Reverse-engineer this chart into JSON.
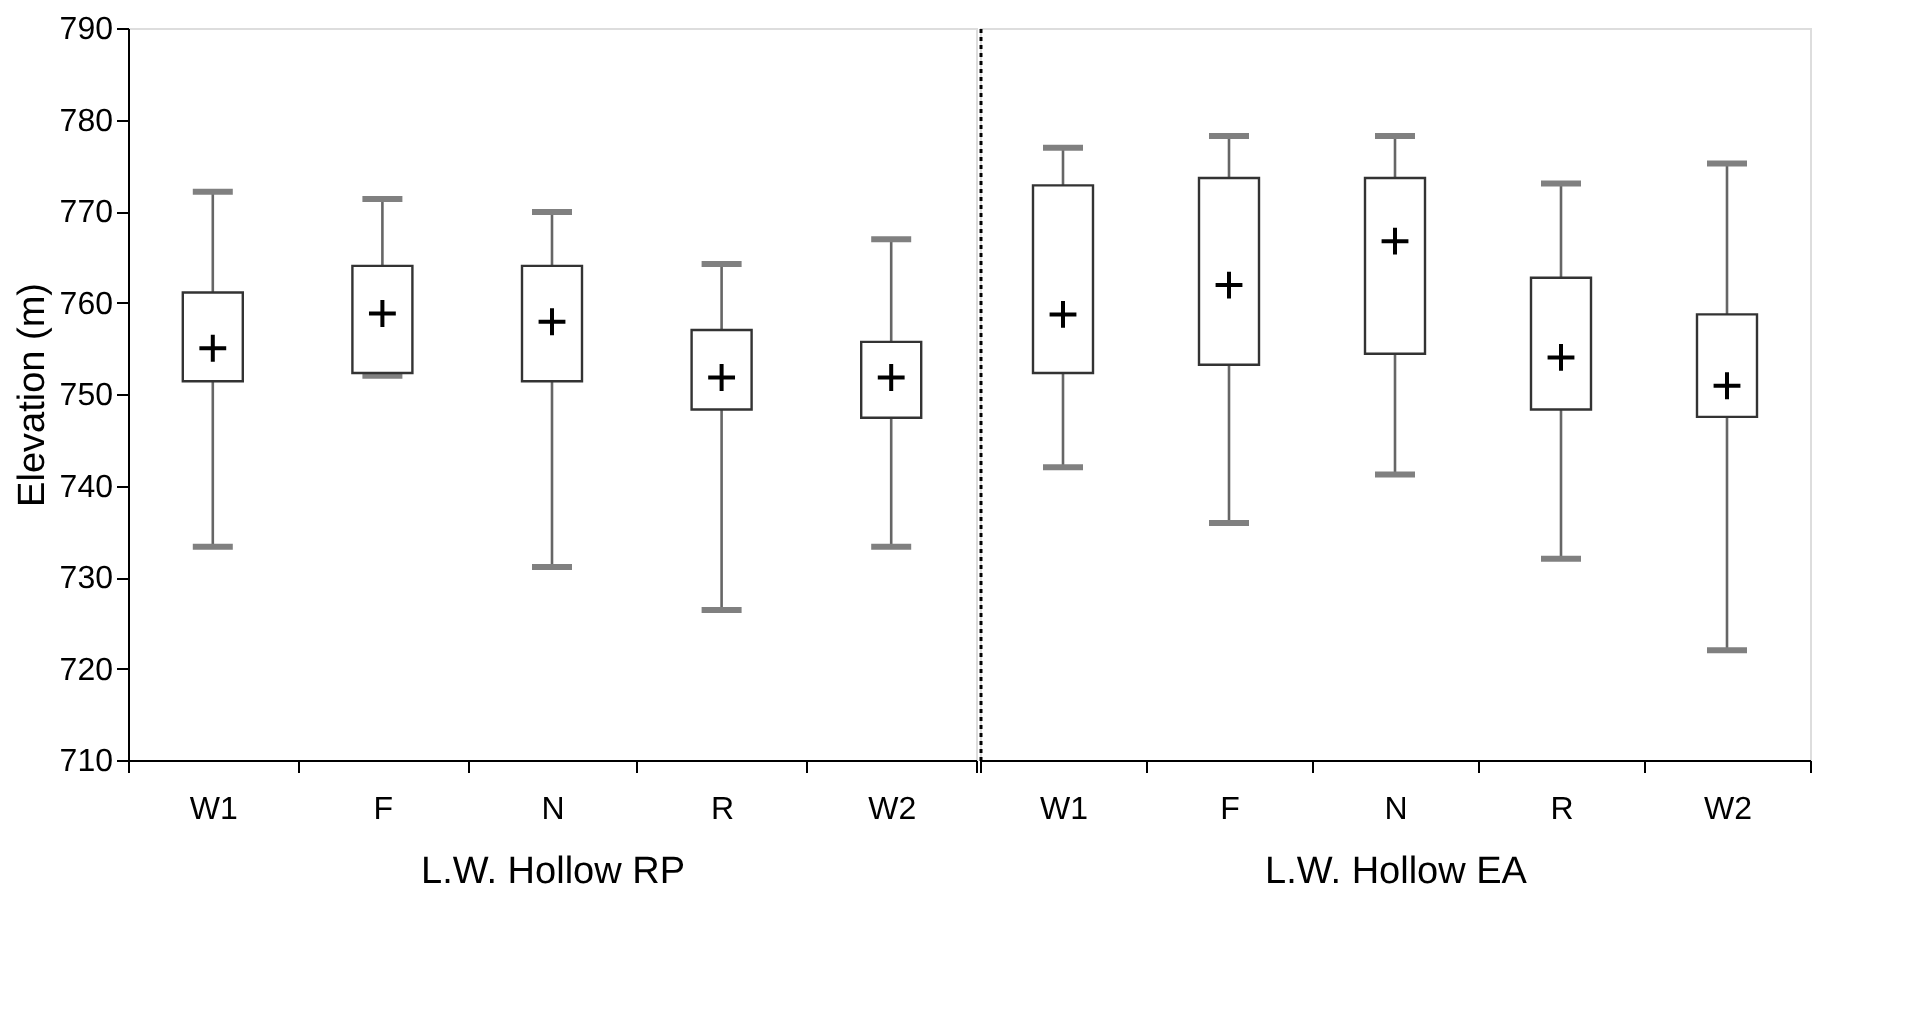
{
  "chart_data": [
    {
      "type": "box",
      "xlabel": "L.W. Hollow RP",
      "ylabel": "Elevation (m)",
      "categories": [
        "W1",
        "F",
        "N",
        "R",
        "W2"
      ],
      "ylim": [
        710,
        790
      ],
      "yticks": [
        710,
        720,
        730,
        740,
        750,
        760,
        770,
        780,
        790
      ],
      "grid": false,
      "boxes": [
        {
          "low": 733.3,
          "q1": 751.4,
          "median": 755.0,
          "q3": 761.1,
          "high": 772.1
        },
        {
          "low": 752.0,
          "q1": 752.3,
          "median": 758.8,
          "q3": 764.0,
          "high": 771.3
        },
        {
          "low": 731.1,
          "q1": 751.4,
          "median": 757.9,
          "q3": 764.0,
          "high": 769.9
        },
        {
          "low": 726.4,
          "q1": 748.3,
          "median": 751.8,
          "q3": 757.0,
          "high": 764.2
        },
        {
          "low": 733.3,
          "q1": 747.4,
          "median": 751.8,
          "q3": 755.7,
          "high": 766.9
        }
      ]
    },
    {
      "type": "box",
      "xlabel": "L.W. Hollow EA",
      "categories": [
        "W1",
        "F",
        "N",
        "R",
        "W2"
      ],
      "ylim": [
        710,
        790
      ],
      "yticks": [
        710,
        720,
        730,
        740,
        750,
        760,
        770,
        780,
        790
      ],
      "grid": false,
      "tick_labels": "x",
      "boxes": [
        {
          "low": 742.0,
          "q1": 752.3,
          "median": 758.7,
          "q3": 772.8,
          "high": 776.9
        },
        {
          "low": 735.9,
          "q1": 753.2,
          "median": 761.9,
          "q3": 773.6,
          "high": 778.2
        },
        {
          "low": 741.2,
          "q1": 754.4,
          "median": 766.7,
          "q3": 773.6,
          "high": 778.2
        },
        {
          "low": 732.0,
          "q1": 748.3,
          "median": 754.0,
          "q3": 762.7,
          "high": 773.0
        },
        {
          "low": 722.0,
          "q1": 747.5,
          "median": 750.9,
          "q3": 758.7,
          "high": 775.2
        }
      ]
    }
  ]
}
